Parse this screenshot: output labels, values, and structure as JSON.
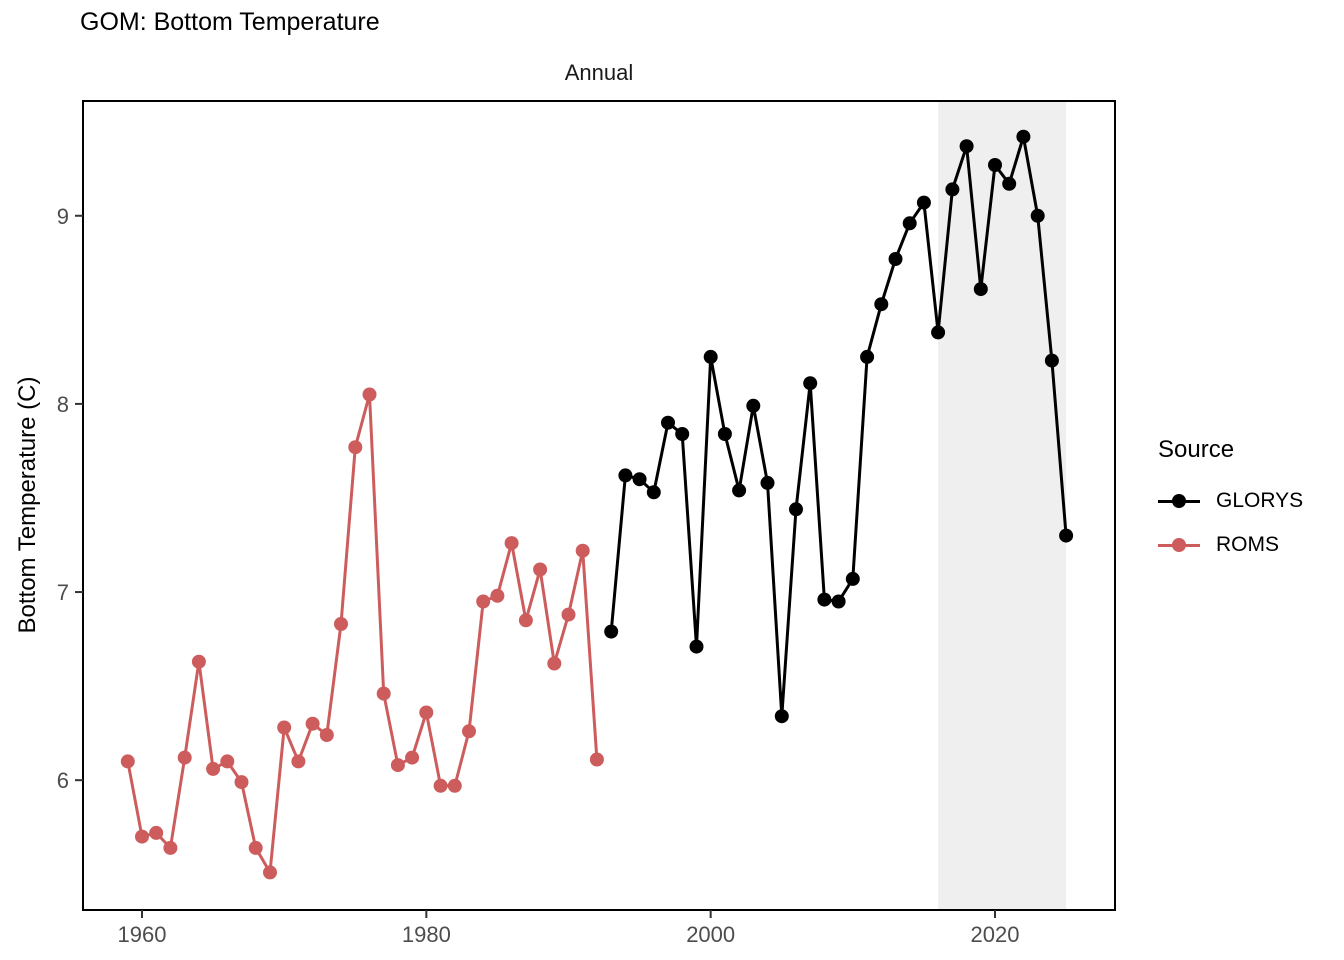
{
  "page": {
    "title": "GOM: Bottom Temperature"
  },
  "chart_data": {
    "type": "line",
    "title": "GOM: Bottom Temperature",
    "subtitle": "Annual",
    "xlabel": "",
    "ylabel": "Bottom Temperature (C)",
    "xlim": [
      1955.85,
      2028.44
    ],
    "ylim": [
      5.31,
      9.61
    ],
    "x_ticks": [
      1960,
      1980,
      2000,
      2020
    ],
    "y_ticks": [
      6,
      7,
      8,
      9
    ],
    "grid": false,
    "legend": {
      "title": "Source",
      "position": "right"
    },
    "highlight_band": {
      "x_start": 2016,
      "x_end": 2025,
      "color": "#efefef"
    },
    "axis_text_color": "#4d4d4d",
    "series": [
      {
        "name": "GLORYS",
        "color": "#000000",
        "x": [
          1993,
          1994,
          1995,
          1996,
          1997,
          1998,
          1999,
          2000,
          2001,
          2002,
          2003,
          2004,
          2005,
          2006,
          2007,
          2008,
          2009,
          2010,
          2011,
          2012,
          2013,
          2014,
          2015,
          2016,
          2017,
          2018,
          2019,
          2020,
          2021,
          2022,
          2023,
          2024,
          2025
        ],
        "values": [
          6.79,
          7.62,
          7.6,
          7.53,
          7.9,
          7.84,
          6.71,
          8.25,
          7.84,
          7.54,
          7.99,
          7.58,
          6.34,
          7.44,
          8.11,
          6.96,
          6.95,
          7.07,
          8.25,
          8.53,
          8.77,
          8.96,
          9.07,
          8.38,
          9.14,
          9.37,
          8.61,
          9.27,
          9.17,
          9.42,
          9.0,
          8.23,
          7.3
        ]
      },
      {
        "name": "ROMS",
        "color": "#cd5c5c",
        "x": [
          1959,
          1960,
          1961,
          1962,
          1963,
          1964,
          1965,
          1966,
          1967,
          1968,
          1969,
          1970,
          1971,
          1972,
          1973,
          1974,
          1975,
          1976,
          1977,
          1978,
          1979,
          1980,
          1981,
          1982,
          1983,
          1984,
          1985,
          1986,
          1987,
          1988,
          1989,
          1990,
          1991,
          1992
        ],
        "values": [
          6.1,
          5.7,
          5.72,
          5.64,
          6.12,
          6.63,
          6.06,
          6.1,
          5.99,
          5.64,
          5.51,
          6.28,
          6.1,
          6.3,
          6.24,
          6.83,
          7.77,
          8.05,
          6.46,
          6.08,
          6.12,
          6.36,
          5.97,
          5.97,
          6.26,
          6.95,
          6.98,
          7.26,
          6.85,
          7.12,
          6.62,
          6.88,
          7.22,
          6.11
        ]
      }
    ]
  }
}
